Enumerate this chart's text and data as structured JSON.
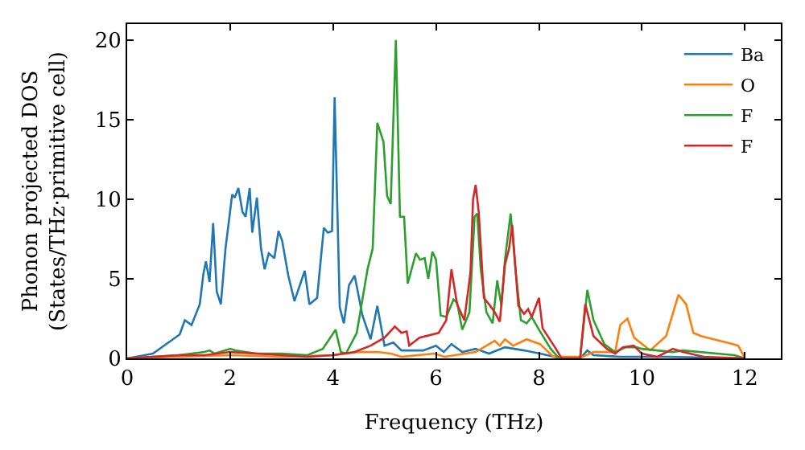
{
  "chart_data": {
    "type": "line",
    "xlabel": "Frequency (THz)",
    "ylabel": "Phonon projected DOS\n(States/THz·primitive cell)",
    "xlim": [
      0,
      12.7
    ],
    "ylim": [
      0,
      21
    ],
    "xticks": [
      0,
      2,
      4,
      6,
      8,
      10,
      12
    ],
    "yticks": [
      0,
      5,
      10,
      15,
      20
    ],
    "legend": "top right",
    "marker": "none",
    "line_style": "solid",
    "series": [
      {
        "name": "Ba",
        "color": "#1f77b4",
        "x": [
          0,
          0.5,
          1.02,
          1.12,
          1.25,
          1.41,
          1.48,
          1.53,
          1.6,
          1.67,
          1.74,
          1.82,
          1.91,
          2.04,
          2.09,
          2.16,
          2.24,
          2.3,
          2.38,
          2.43,
          2.52,
          2.6,
          2.67,
          2.75,
          2.86,
          2.94,
          3.01,
          3.13,
          3.25,
          3.45,
          3.54,
          3.69,
          3.82,
          3.9,
          3.98,
          4.03,
          4.13,
          4.21,
          4.31,
          4.42,
          4.57,
          4.73,
          4.86,
          5.0,
          5.17,
          5.33,
          5.75,
          6.0,
          6.15,
          6.3,
          6.51,
          6.77,
          7.03,
          7.34,
          7.71,
          8.02,
          8.44,
          8.8,
          8.94,
          9.06,
          9.58,
          10.5,
          12.0
        ],
        "values": [
          0,
          0.3,
          1.5,
          2.4,
          2.1,
          3.4,
          5.3,
          6.1,
          4.8,
          8.5,
          4.2,
          3.4,
          6.9,
          10.3,
          10.1,
          10.7,
          9.2,
          8.9,
          10.7,
          7.9,
          10.1,
          6.9,
          5.6,
          6.6,
          6.3,
          8.0,
          7.4,
          5.2,
          3.6,
          5.5,
          3.4,
          3.8,
          8.2,
          7.9,
          8.0,
          16.4,
          3.2,
          2.2,
          4.6,
          5.2,
          2.7,
          1.2,
          3.3,
          0.8,
          1.0,
          0.5,
          0.5,
          0.8,
          0.4,
          0.9,
          0.4,
          0.6,
          0.3,
          0.7,
          0.5,
          0.3,
          0,
          0,
          0.5,
          0.2,
          0.1,
          0.1,
          0
        ]
      },
      {
        "name": "O",
        "color": "#ff7f0e",
        "x": [
          0,
          1.0,
          2.0,
          3.0,
          4.0,
          4.5,
          4.86,
          5.12,
          5.33,
          5.96,
          6.17,
          6.77,
          7.14,
          7.24,
          7.34,
          7.5,
          7.76,
          8.02,
          8.28,
          8.85,
          9.06,
          9.48,
          9.58,
          9.72,
          9.85,
          10.16,
          10.47,
          10.71,
          10.86,
          11.0,
          11.15,
          11.77,
          11.87,
          11.99,
          12.0
        ],
        "values": [
          0,
          0.1,
          0.2,
          0.1,
          0.2,
          0.4,
          0.4,
          0.3,
          0.1,
          0.3,
          0.1,
          0.4,
          1.1,
          0.8,
          1.2,
          0.8,
          1.2,
          0.9,
          0.1,
          0.1,
          0.4,
          0.4,
          2.1,
          2.5,
          1.3,
          0.5,
          1.4,
          4.0,
          3.4,
          1.6,
          1.4,
          0.9,
          0.8,
          0.1,
          0
        ]
      },
      {
        "name": "F",
        "color": "#2ca02c",
        "x": [
          0,
          1.0,
          1.5,
          1.6,
          1.7,
          2.0,
          2.1,
          2.5,
          3.0,
          3.5,
          3.8,
          4.05,
          4.15,
          4.25,
          4.46,
          4.67,
          4.77,
          4.86,
          4.98,
          5.05,
          5.12,
          5.22,
          5.3,
          5.38,
          5.45,
          5.61,
          5.69,
          5.78,
          5.85,
          5.93,
          6.0,
          6.09,
          6.2,
          6.34,
          6.41,
          6.51,
          6.65,
          6.75,
          6.8,
          6.87,
          6.98,
          7.1,
          7.19,
          7.27,
          7.34,
          7.45,
          7.55,
          7.65,
          7.76,
          7.86,
          8.02,
          8.23,
          8.39,
          8.8,
          8.94,
          9.06,
          9.27,
          9.48,
          9.69,
          9.9,
          10.0,
          10.6,
          10.8,
          11.8,
          12.0
        ],
        "values": [
          0,
          0.2,
          0.4,
          0.5,
          0.3,
          0.6,
          0.5,
          0.3,
          0.3,
          0.2,
          0.6,
          1.8,
          0.4,
          0.3,
          1.6,
          5.6,
          6.9,
          14.8,
          13.6,
          10.2,
          9.7,
          20.0,
          8.9,
          8.9,
          4.7,
          6.6,
          6.2,
          6.3,
          5.0,
          6.7,
          6.2,
          2.7,
          2.6,
          3.7,
          3.5,
          1.8,
          2.9,
          8.9,
          9.1,
          5.6,
          2.9,
          2.2,
          4.9,
          3.3,
          6.2,
          9.1,
          5.4,
          2.4,
          2.2,
          2.6,
          1.7,
          0.6,
          0,
          0,
          4.3,
          2.4,
          0.9,
          0.4,
          0.7,
          0.7,
          0.6,
          0.4,
          0.5,
          0.2,
          0
        ]
      },
      {
        "name": "F",
        "color": "#d62728",
        "x": [
          0,
          1.0,
          1.5,
          2.0,
          2.5,
          3.0,
          3.5,
          4.0,
          4.42,
          4.73,
          5.0,
          5.2,
          5.33,
          5.43,
          5.48,
          5.68,
          6.05,
          6.2,
          6.3,
          6.41,
          6.55,
          6.67,
          6.72,
          6.77,
          6.83,
          6.93,
          7.03,
          7.14,
          7.24,
          7.34,
          7.42,
          7.48,
          7.6,
          7.71,
          7.79,
          7.86,
          8.0,
          8.07,
          8.33,
          8.44,
          8.8,
          8.9,
          9.06,
          9.32,
          9.48,
          9.63,
          9.84,
          10.0,
          10.3,
          10.6,
          10.8,
          11.2,
          12.0
        ],
        "values": [
          0,
          0.2,
          0.2,
          0.4,
          0.3,
          0.2,
          0.1,
          0.2,
          0.4,
          0.8,
          1.3,
          2.0,
          1.6,
          1.7,
          0.8,
          1.3,
          1.6,
          2.4,
          5.6,
          3.4,
          2.4,
          5.4,
          10.0,
          10.9,
          9.2,
          3.8,
          3.4,
          2.9,
          2.3,
          5.9,
          6.9,
          8.4,
          3.3,
          2.8,
          3.1,
          2.6,
          3.8,
          1.9,
          0.6,
          0,
          0,
          3.4,
          1.4,
          0.6,
          0.3,
          0.7,
          0.8,
          0.3,
          0.1,
          0.6,
          0.4,
          0.1,
          0
        ]
      }
    ]
  }
}
